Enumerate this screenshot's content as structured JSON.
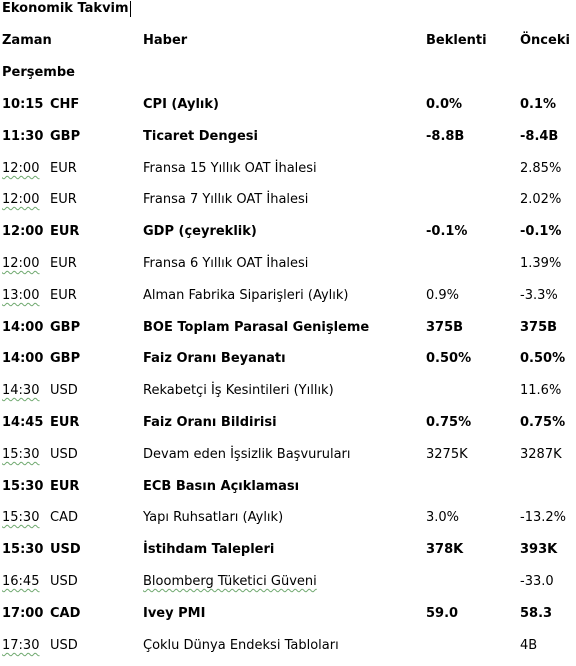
{
  "title": "Ekonomik Takvim",
  "headers": {
    "time": "Zaman",
    "news": "Haber",
    "expected": "Beklenti",
    "previous": "Önceki"
  },
  "day": "Perşembe",
  "rows": [
    {
      "time": "10:15",
      "currency": "CHF",
      "news": "CPI (Aylık)",
      "expected": "0.0%",
      "previous": "0.1%",
      "bold": true
    },
    {
      "time": "11:30",
      "currency": "GBP",
      "news": "Ticaret Dengesi",
      "expected": "-8.8B",
      "previous": "-8.4B",
      "bold": true
    },
    {
      "time": "12:00",
      "currency": "EUR",
      "news": "Fransa 15 Yıllık  OAT İhalesi",
      "expected": "",
      "previous": " 2.85%",
      "bold": false
    },
    {
      "time": "12:00",
      "currency": "EUR",
      "news": "Fransa 7 Yıllık  OAT İhalesi",
      "expected": "",
      "previous": "2.02%",
      "bold": false
    },
    {
      "time": "12:00",
      "currency": "EUR",
      "news": "GDP (çeyreklik)",
      "expected": "-0.1%",
      "previous": "-0.1%",
      "bold": true
    },
    {
      "time": "12:00",
      "currency": "EUR",
      "news": "Fransa 6 Yıllık  OAT İhalesi",
      "expected": "",
      "previous": "1.39%",
      "bold": false
    },
    {
      "time": "13:00",
      "currency": "EUR",
      "news": "Alman Fabrika Siparişleri  (Aylık)",
      "expected": "0.9%",
      "previous": "-3.3%",
      "bold": false
    },
    {
      "time": "14:00",
      "currency": "GBP",
      "news": "BOE Toplam  Parasal Genişleme",
      "expected": "375B",
      "previous": "375B",
      "bold": true
    },
    {
      "time": "14:00",
      "currency": "GBP",
      "news": "Faiz Oranı Beyanatı",
      "expected": "0.50%",
      "previous": "0.50%",
      "bold": true
    },
    {
      "time": "14:30",
      "currency": "USD",
      "news": "Rekabetçi İş Kesintileri  (Yıllık)",
      "expected": "",
      "previous": "11.6%",
      "bold": false
    },
    {
      "time": "14:45",
      "currency": "EUR",
      "news": "Faiz Oranı Bildirisi",
      "expected": "0.75%",
      "previous": "0.75%",
      "bold": true
    },
    {
      "time": "15:30",
      "currency": "USD",
      "news": "Devam eden İşsizlik  Başvuruları",
      "expected": "3275K",
      "previous": "3287K",
      "bold": false
    },
    {
      "time": "15:30",
      "currency": "EUR",
      "news": "ECB Basın Açıklaması",
      "expected": "",
      "previous": "",
      "bold": true
    },
    {
      "time": "15:30",
      "currency": "CAD",
      "news": "Yapı Ruhsatları  (Aylık)",
      "expected": "3.0%",
      "previous": "-13.2%",
      "bold": false
    },
    {
      "time": "15:30",
      "currency": "USD",
      "news": "İstihdam Talepleri",
      "expected": "378K",
      "previous": "393K",
      "bold": true
    },
    {
      "time": "16:45",
      "currency": "USD",
      "news": "Bloomberg Tüketici  Güveni",
      "expected": "",
      "previous": "-33.0",
      "bold": false
    },
    {
      "time": "17:00",
      "currency": "CAD",
      "news": "Ivey PMI",
      "expected": "59.0",
      "previous": "58.3",
      "bold": true
    },
    {
      "time": "17:30",
      "currency": "USD",
      "news": "Çoklu Dünya Endeksi Tabloları",
      "expected": "",
      "previous": "4B",
      "bold": false
    }
  ]
}
